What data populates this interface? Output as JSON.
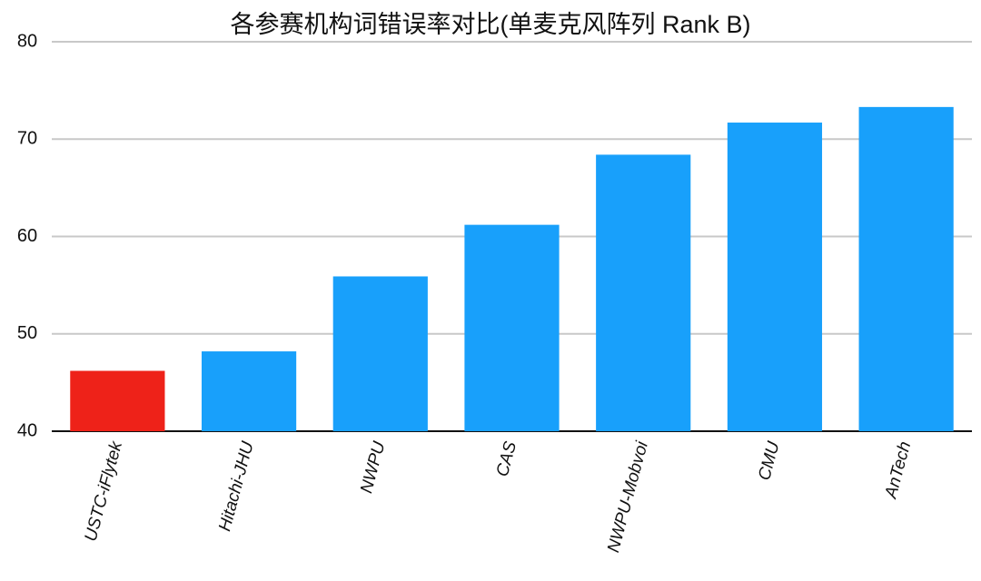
{
  "chart_data": {
    "type": "bar",
    "title": "各参赛机构词错误率对比(单麦克风阵列 Rank B)",
    "categories": [
      "USTC-iFlytek",
      "Hitachi-JHU",
      "NWPU",
      "CAS",
      "NWPU-Mobvoi",
      "CMU",
      "AnTech"
    ],
    "values": [
      46.2,
      48.2,
      55.9,
      61.2,
      68.4,
      71.7,
      73.3
    ],
    "colors": [
      "#ee2219",
      "#18a0fb",
      "#18a0fb",
      "#18a0fb",
      "#18a0fb",
      "#18a0fb",
      "#18a0fb"
    ],
    "ylim": [
      40,
      80
    ],
    "yticks": [
      40,
      50,
      60,
      70,
      80
    ],
    "grid": true
  }
}
